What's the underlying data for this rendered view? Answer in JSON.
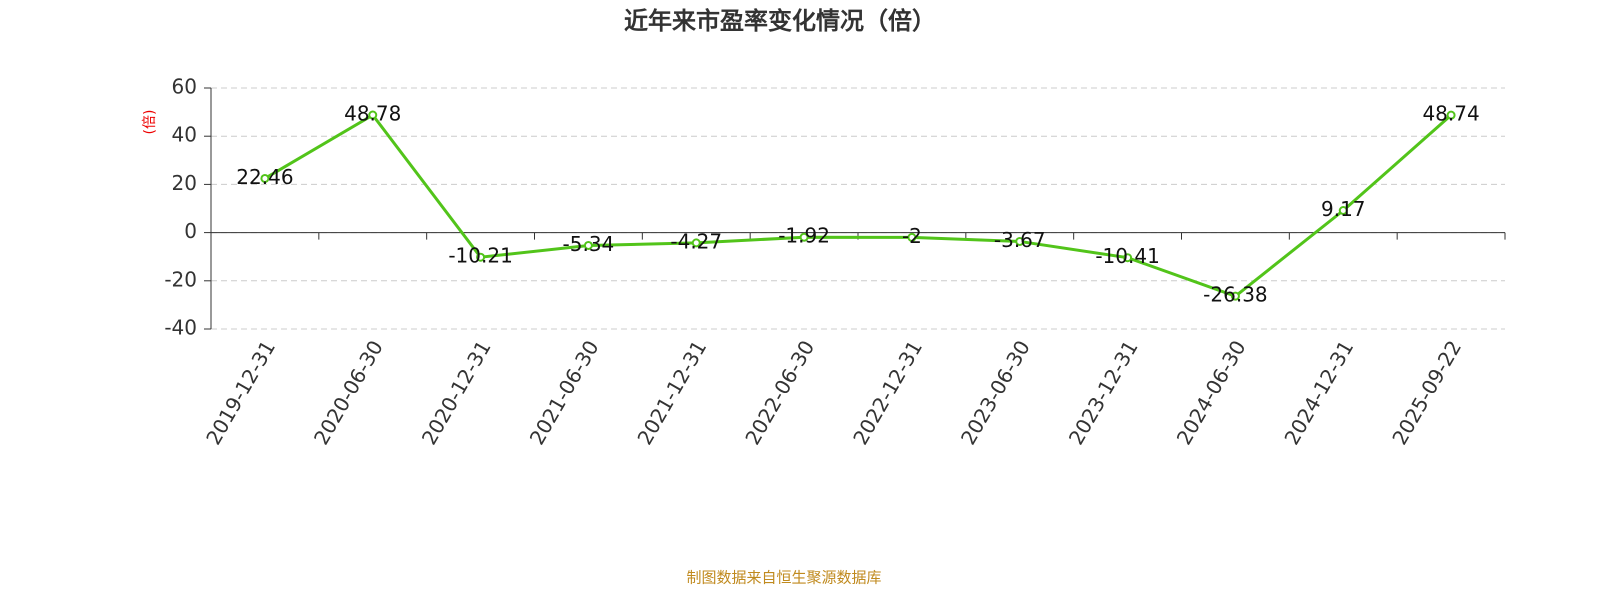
{
  "chart_data": {
    "type": "line",
    "title": "近年来市盈率变化情况（倍）",
    "y_label": "(倍)",
    "source": "制图数据来自恒生聚源数据库",
    "categories": [
      "2019-12-31",
      "2020-06-30",
      "2020-12-31",
      "2021-06-30",
      "2021-12-31",
      "2022-06-30",
      "2022-12-31",
      "2023-06-30",
      "2023-12-31",
      "2024-06-30",
      "2024-12-31",
      "2025-09-22"
    ],
    "series": [
      {
        "name": "市盈率",
        "color": "#52c41a",
        "values": [
          22.46,
          48.78,
          -10.21,
          -5.34,
          -4.27,
          -1.92,
          -2,
          -3.67,
          -10.41,
          -26.38,
          9.17,
          48.74
        ]
      }
    ],
    "ylim": [
      -40,
      60
    ],
    "yticks": [
      -40,
      -20,
      0,
      20,
      40,
      60
    ],
    "grid": true
  }
}
